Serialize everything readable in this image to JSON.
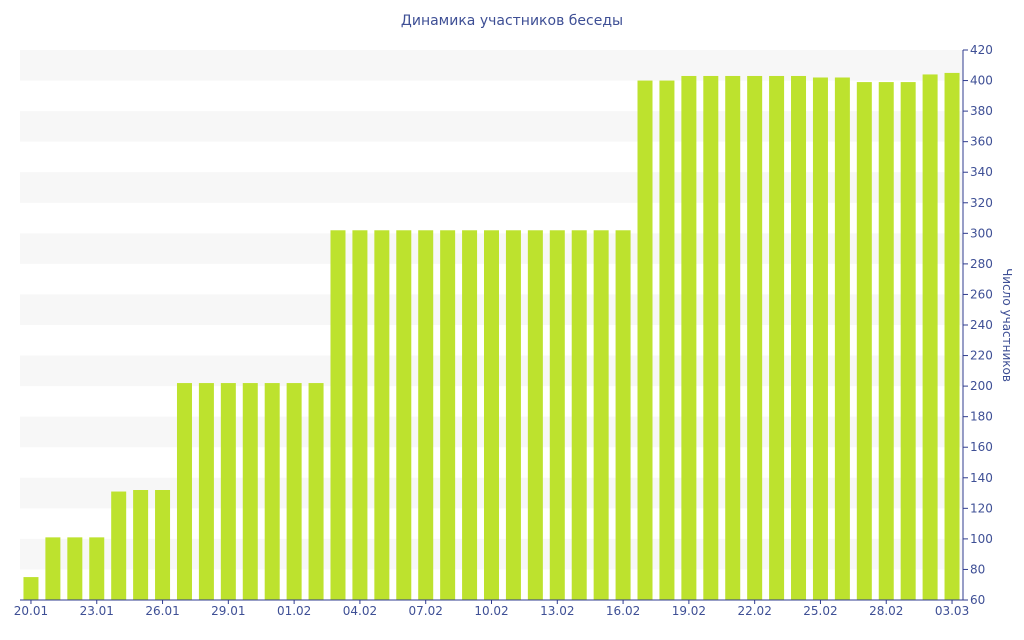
{
  "chart_data": {
    "type": "bar",
    "title": "Динамика участников беседы",
    "xlabel": "",
    "ylabel": "Число участников",
    "ylim": [
      60,
      420
    ],
    "y_ticks": [
      60,
      80,
      100,
      120,
      140,
      160,
      180,
      200,
      220,
      240,
      260,
      280,
      300,
      320,
      340,
      360,
      380,
      400,
      420
    ],
    "x_tick_labels": [
      "20.01",
      "23.01",
      "26.01",
      "29.01",
      "01.02",
      "04.02",
      "07.02",
      "10.02",
      "13.02",
      "16.02",
      "19.02",
      "22.02",
      "25.02",
      "28.02",
      "03.03"
    ],
    "categories": [
      "20.01",
      "21.01",
      "22.01",
      "23.01",
      "24.01",
      "25.01",
      "26.01",
      "27.01",
      "28.01",
      "29.01",
      "30.01",
      "31.01",
      "01.02",
      "02.02",
      "03.02",
      "04.02",
      "05.02",
      "06.02",
      "07.02",
      "08.02",
      "09.02",
      "10.02",
      "11.02",
      "12.02",
      "13.02",
      "14.02",
      "15.02",
      "16.02",
      "17.02",
      "18.02",
      "19.02",
      "20.02",
      "21.02",
      "22.02",
      "23.02",
      "24.02",
      "25.02",
      "26.02",
      "27.02",
      "28.02",
      "01.03",
      "02.03",
      "03.03"
    ],
    "values": [
      75,
      101,
      101,
      101,
      131,
      132,
      132,
      202,
      202,
      202,
      202,
      202,
      202,
      202,
      302,
      302,
      302,
      302,
      302,
      302,
      302,
      302,
      302,
      302,
      302,
      302,
      302,
      302,
      400,
      400,
      403,
      403,
      403,
      403,
      403,
      403,
      402,
      402,
      399,
      399,
      399,
      404,
      405
    ],
    "grid": "horizontal bands",
    "colors": {
      "bar": "#bde22e",
      "band": "#f7f7f7",
      "text": "#3e4f95",
      "axis": "#2f3b8f"
    }
  }
}
